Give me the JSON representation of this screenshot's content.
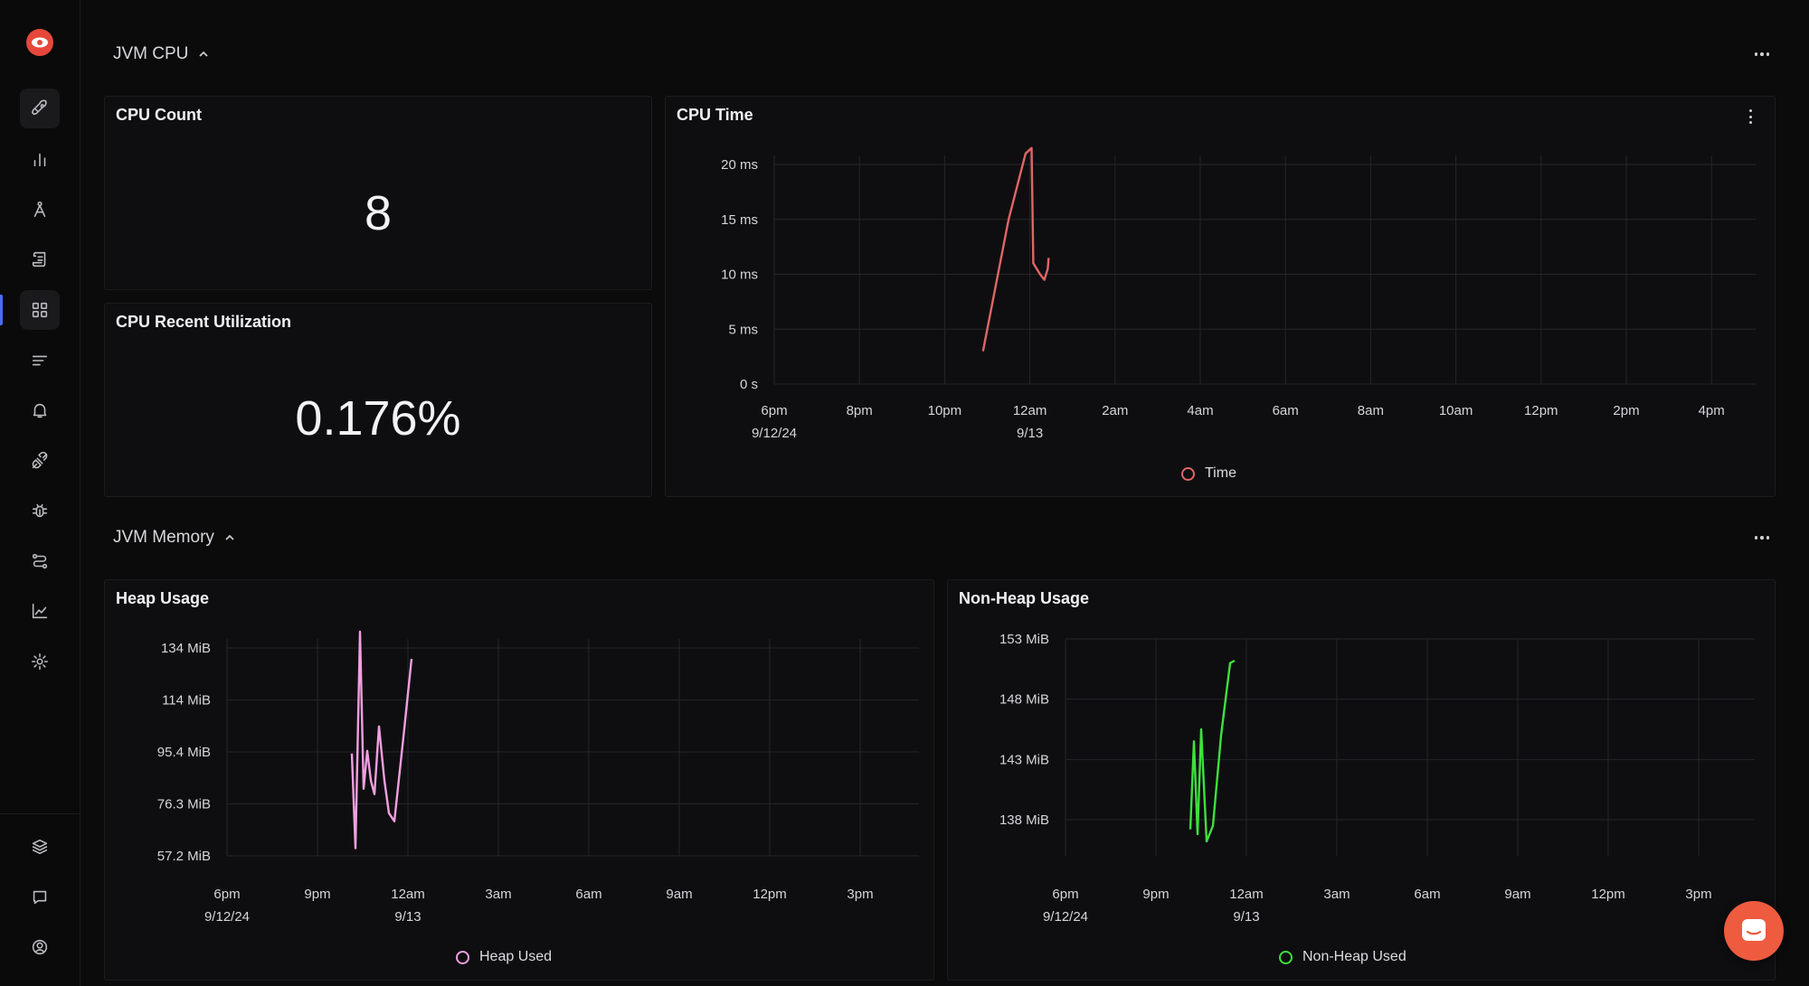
{
  "sidebar": {
    "logo": "eye-logo",
    "items": [
      {
        "name": "rocket-icon"
      },
      {
        "name": "bar-chart-icon"
      },
      {
        "name": "traces-icon"
      },
      {
        "name": "logs-icon"
      },
      {
        "name": "dashboard-grid-icon",
        "active": true
      },
      {
        "name": "list-filter-icon"
      },
      {
        "name": "alert-bell-icon"
      },
      {
        "name": "integrations-plug-icon"
      },
      {
        "name": "bug-icon"
      },
      {
        "name": "pipelines-icon"
      },
      {
        "name": "area-chart-icon"
      },
      {
        "name": "settings-gear-icon"
      }
    ],
    "bottom_items": [
      {
        "name": "layers-icon"
      },
      {
        "name": "chat-icon"
      },
      {
        "name": "user-circle-icon"
      }
    ]
  },
  "sections": {
    "cpu": {
      "title": "JVM CPU"
    },
    "memory": {
      "title": "JVM Memory"
    }
  },
  "panels": {
    "cpu_count": {
      "title": "CPU Count",
      "value": "8"
    },
    "cpu_util": {
      "title": "CPU Recent Utilization",
      "value": "0.176%"
    },
    "cpu_time": {
      "title": "CPU Time"
    },
    "heap": {
      "title": "Heap Usage"
    },
    "nonheap": {
      "title": "Non-Heap Usage"
    }
  },
  "colors": {
    "cpu_time": "#e06666",
    "heap": "#f29fe0",
    "nonheap": "#3ee03e",
    "accent": "#4a6cf7"
  },
  "chart_data": [
    {
      "id": "cpu_time",
      "type": "line",
      "title": "CPU Time",
      "x_ticks": [
        "6pm",
        "8pm",
        "10pm",
        "12am",
        "2am",
        "4am",
        "6am",
        "8am",
        "10am",
        "12pm",
        "2pm",
        "4pm"
      ],
      "x_subticks": {
        "0": "9/12/24",
        "3": "9/13"
      },
      "y_ticks": [
        "0 s",
        "5 ms",
        "10 ms",
        "15 ms",
        "20 ms"
      ],
      "ylim": [
        0,
        20
      ],
      "legend": "top",
      "series": [
        {
          "name": "Time",
          "color": "#e06666",
          "points": [
            [
              2.45,
              3
            ],
            [
              2.75,
              15
            ],
            [
              2.95,
              21
            ],
            [
              3.02,
              21.5
            ],
            [
              3.04,
              11
            ],
            [
              3.12,
              10
            ],
            [
              3.17,
              9.5
            ],
            [
              3.21,
              10.5
            ],
            [
              3.22,
              11.5
            ]
          ]
        }
      ]
    },
    {
      "id": "heap",
      "type": "line",
      "title": "Heap Usage",
      "x_ticks": [
        "6pm",
        "9pm",
        "12am",
        "3am",
        "6am",
        "9am",
        "12pm",
        "3pm"
      ],
      "x_subticks": {
        "0": "9/12/24",
        "2": "9/13"
      },
      "y_ticks": [
        "57.2 MiB",
        "76.3 MiB",
        "95.4 MiB",
        "114 MiB",
        "134 MiB"
      ],
      "ylim": [
        57.2,
        134
      ],
      "legend": "bottom",
      "series": [
        {
          "name": "Heap Used",
          "color": "#f29fe0",
          "points": [
            [
              1.38,
              95
            ],
            [
              1.42,
              60
            ],
            [
              1.47,
              140
            ],
            [
              1.51,
              82
            ],
            [
              1.55,
              96
            ],
            [
              1.59,
              85
            ],
            [
              1.63,
              80
            ],
            [
              1.68,
              105
            ],
            [
              1.74,
              85
            ],
            [
              1.79,
              73
            ],
            [
              1.85,
              70
            ],
            [
              1.95,
              101
            ],
            [
              2.04,
              130
            ]
          ]
        }
      ]
    },
    {
      "id": "nonheap",
      "type": "line",
      "title": "Non-Heap Usage",
      "x_ticks": [
        "6pm",
        "9pm",
        "12am",
        "3am",
        "6am",
        "9am",
        "12pm",
        "3pm"
      ],
      "x_subticks": {
        "0": "9/12/24",
        "2": "9/13"
      },
      "y_ticks": [
        "138 MiB",
        "143 MiB",
        "148 MiB",
        "153 MiB"
      ],
      "ylim": [
        138,
        153
      ],
      "legend": "bottom",
      "series": [
        {
          "name": "Non-Heap Used",
          "color": "#3ee03e",
          "points": [
            [
              1.38,
              137.2
            ],
            [
              1.42,
              144.5
            ],
            [
              1.46,
              136.8
            ],
            [
              1.5,
              145.5
            ],
            [
              1.56,
              136.2
            ],
            [
              1.63,
              137.5
            ],
            [
              1.72,
              145
            ],
            [
              1.82,
              151
            ],
            [
              1.87,
              151.2
            ]
          ]
        }
      ]
    }
  ]
}
